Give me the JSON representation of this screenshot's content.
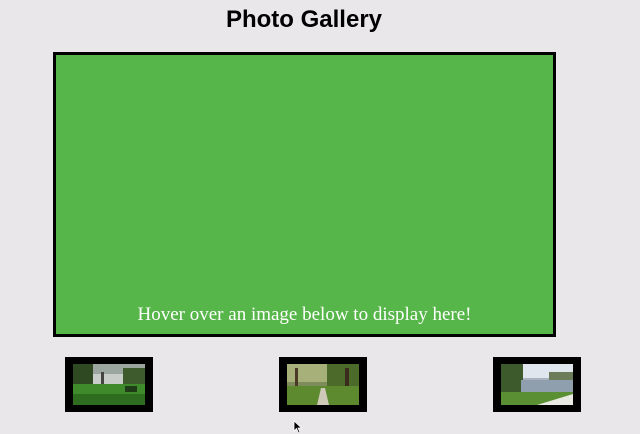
{
  "page": {
    "title": "Photo Gallery"
  },
  "display": {
    "caption": "Hover over an image below to display here!",
    "background_color": "#56b649",
    "border_color": "#000000"
  },
  "thumbnails": [
    {
      "icon": "park-photo-thumbnail"
    },
    {
      "icon": "trail-photo-thumbnail"
    },
    {
      "icon": "lake-photo-thumbnail"
    }
  ],
  "cursor": {
    "icon": "mouse-pointer-icon"
  }
}
